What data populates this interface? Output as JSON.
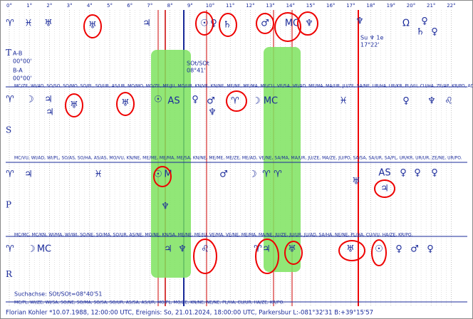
{
  "scale": [
    "0°",
    "1°",
    "2°",
    "3°",
    "4°",
    "5°",
    "6°",
    "7°",
    "8°",
    "9°",
    "10°",
    "11°",
    "12°",
    "13°",
    "14°",
    "15°",
    "16°",
    "17°",
    "18°",
    "19°",
    "20°",
    "21°",
    "22°"
  ],
  "rows": [
    {
      "label": "T",
      "glyphs": [
        "♈",
        "♓",
        "♅",
        "♅",
        "♃",
        "☉",
        "♀",
        "♄",
        "♂",
        "MC",
        "♆",
        "♆",
        "♀",
        "Ω",
        "♀",
        "♄"
      ]
    },
    {
      "label": "S",
      "glyphs": [
        "♈",
        "☽",
        "♃",
        "♃",
        "♅",
        "♅",
        "☉",
        "AS",
        "♀",
        "♂",
        "♆",
        "♈",
        "☽",
        "MC",
        "♓",
        "♀",
        "♆",
        "♌"
      ]
    },
    {
      "label": "P",
      "glyphs": [
        "♈",
        "♃",
        "♓",
        "☉",
        "M",
        "♂",
        "☽",
        "♈",
        "♈",
        "♆",
        "♅",
        "♃",
        "AS",
        "♀",
        "♀",
        "♀"
      ]
    },
    {
      "label": "R",
      "glyphs": [
        "♈",
        "☽",
        "MC",
        "♃",
        "♆",
        "♌",
        "♃",
        "♈",
        "♅",
        "♅",
        "☉",
        "♀",
        "♂",
        "♀"
      ]
    }
  ],
  "notes": {
    "ab": "A-B",
    "ab_value": "00°00'",
    "ba": "B-A",
    "ba_value": "00°00'",
    "axis_name": "SOt/SOt",
    "axis_value": "08°41'",
    "su": "Su ♆ 1e",
    "su_value": "17°22'",
    "search": "Suchachse: SOt/SOt=08°40'51"
  },
  "midpoints": [
    "MC/ZE, WI/AD, SO/SO, SO/MO, SO/PL, SO/UR, AS/UR, MO/MO, MO/ZE, ME/JU, MO/UR, KN/VE, KN/NE, ME/NE, ME/MA, ME/CU, VE/SA, VE/AD, ME/MA, MA/UR, JU/ZE, SA/NE, UR/HA, UR/KR, PL/VU, CU/HA, ZE/AP, KR/PO, AD/PO.",
    "MC/VU, WI/AD, WI/PL, SO/AS, SO/HA, AS/AS, MO/VU, KN/NE, ME/ME, ME/MA, ME/SA, KN/NE, ME/ME, ME/ZE, ME/AD, VE/NE, SA/MA, MA/UR, JU/ZE, MA/ZE, JU/PO, SA/SA, SA/UR, SA/PL, UR/KR, UR/UR, ZE/NE, UR/PO.",
    "MC/MC, MC/KN, WI/MA, WI/WI, SO/NE, SO/MA, SO/UR, AS/NE, MO/NE, KN/SA, ME/NE, ME/JU, VE/MA, VE/NE, ME/MA, MA/NE, JU/ZE, JU/UR, JU/AD, SA/HA, NE/NE, PL/HA, CU/VU, HA/ZE, KR/PO.",
    "MC/PL, WI/ZE, WI/SA, SO/NE, SO/MA, SO/SA, SO/UR, AS/SA, AS/UR, MO/PL, MO/ZE, KN/NE, NE/NE, PL/HA, CU/UR, HA/ZE, KR/PO."
  ],
  "footer": "Florian Kohler  *10.07.1988, 12:00:00 UTC, Ereignis: So, 21.01.2024, 18:00:00 UTC, Parkersbur   L:-081°32'31 B:+39°15'57"
}
